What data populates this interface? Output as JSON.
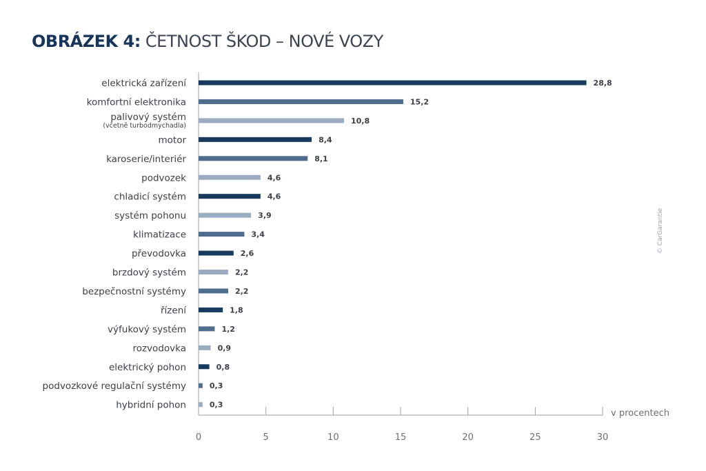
{
  "title": {
    "bold": "OBRÁZEK 4:",
    "regular": " ČETNOST ŠKOD – NOVÉ VOZY"
  },
  "copyright": "© CarGarantie",
  "colors": {
    "dark": "#173a5e",
    "mid": "#4f6d8e",
    "light": "#9aabc2"
  },
  "chart_data": {
    "type": "bar",
    "orientation": "horizontal",
    "title": "OBRÁZEK 4: ČETNOST ŠKOD – NOVÉ VOZY",
    "xlabel": "v procentech",
    "xlim": [
      0,
      30
    ],
    "xticks": [
      0,
      5,
      10,
      15,
      20,
      25,
      30
    ],
    "grid": false,
    "categories": [
      {
        "label": "elektrická zařízení",
        "sub": ""
      },
      {
        "label": "komfortní elektronika",
        "sub": ""
      },
      {
        "label": "palivový systém",
        "sub": "(včetně turbodmychadla)"
      },
      {
        "label": "motor",
        "sub": ""
      },
      {
        "label": "karoserie/interiér",
        "sub": ""
      },
      {
        "label": "podvozek",
        "sub": ""
      },
      {
        "label": "chladicí systém",
        "sub": ""
      },
      {
        "label": "systém pohonu",
        "sub": ""
      },
      {
        "label": "klimatizace",
        "sub": ""
      },
      {
        "label": "převodovka",
        "sub": ""
      },
      {
        "label": "brzdový systém",
        "sub": ""
      },
      {
        "label": "bezpečnostní systémy",
        "sub": ""
      },
      {
        "label": "řízení",
        "sub": ""
      },
      {
        "label": "výfukový systém",
        "sub": ""
      },
      {
        "label": "rozvodovka",
        "sub": ""
      },
      {
        "label": "elektrický pohon",
        "sub": ""
      },
      {
        "label": "podvozkové regulační systémy",
        "sub": ""
      },
      {
        "label": "hybridní pohon",
        "sub": ""
      }
    ],
    "values": [
      28.8,
      15.2,
      10.8,
      8.4,
      8.1,
      4.6,
      4.6,
      3.9,
      3.4,
      2.6,
      2.2,
      2.2,
      1.8,
      1.2,
      0.9,
      0.8,
      0.3,
      0.3
    ],
    "value_labels": [
      "28,8",
      "15,2",
      "10,8",
      "8,4",
      "8,1",
      "4,6",
      "4,6",
      "3,9",
      "3,4",
      "2,6",
      "2,2",
      "2,2",
      "1,8",
      "1,2",
      "0,9",
      "0,8",
      "0,3",
      "0,3"
    ],
    "bar_colors": [
      "dark",
      "mid",
      "light",
      "dark",
      "mid",
      "light",
      "dark",
      "light",
      "mid",
      "dark",
      "light",
      "mid",
      "dark",
      "mid",
      "light",
      "dark",
      "mid",
      "light"
    ]
  }
}
